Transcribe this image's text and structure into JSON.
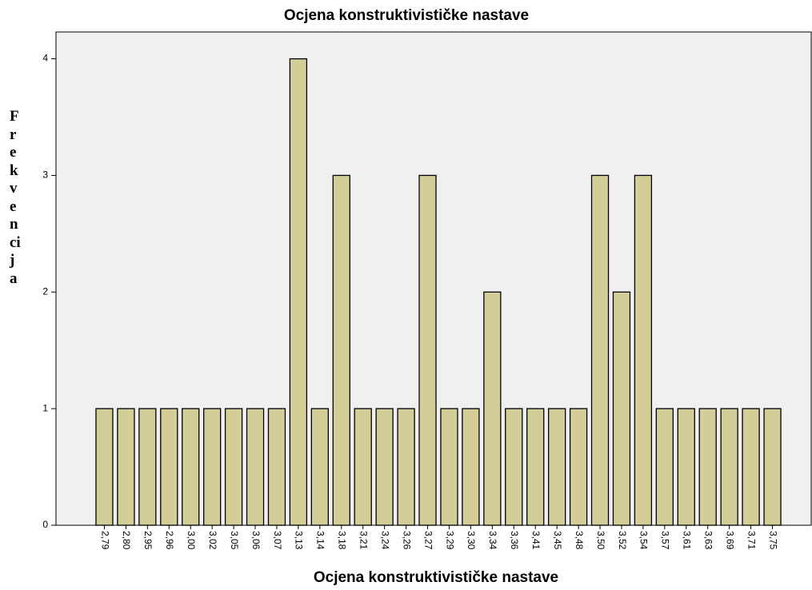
{
  "chart_data": {
    "type": "bar",
    "title": "Ocjena konstruktivističke nastave",
    "x_label": "Ocjena konstruktivističke nastave",
    "y_label": "Frekvencija",
    "categories": [
      "2,79",
      "2,80",
      "2,95",
      "2,96",
      "3,00",
      "3,02",
      "3,05",
      "3,06",
      "3,07",
      "3,13",
      "3,14",
      "3,18",
      "3,21",
      "3,24",
      "3,26",
      "3,27",
      "3,29",
      "3,30",
      "3,34",
      "3,36",
      "3,41",
      "3,45",
      "3,48",
      "3,50",
      "3,52",
      "3,54",
      "3,57",
      "3,61",
      "3,63",
      "3,69",
      "3,71",
      "3,75"
    ],
    "values": [
      1,
      1,
      1,
      1,
      1,
      1,
      1,
      1,
      1,
      4,
      1,
      3,
      1,
      1,
      1,
      3,
      1,
      1,
      2,
      1,
      1,
      1,
      1,
      3,
      2,
      3,
      1,
      1,
      1,
      1,
      1,
      1
    ],
    "color": "#d3ce97",
    "ylim": [
      0,
      4.23
    ],
    "yticks": [
      0,
      1,
      2,
      3,
      4
    ],
    "grid": false
  }
}
